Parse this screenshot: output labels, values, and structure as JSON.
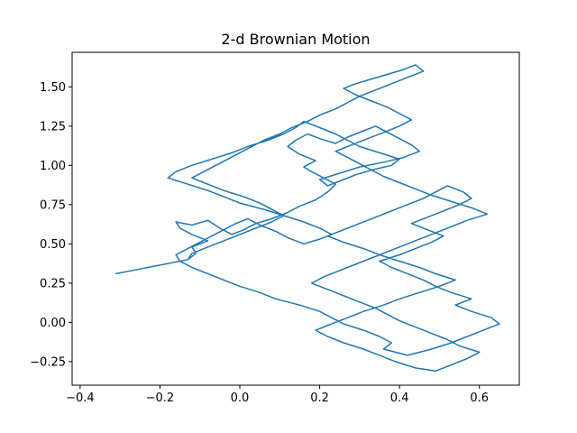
{
  "chart_data": {
    "type": "line",
    "title": "2-d Brownian Motion",
    "xlabel": "",
    "ylabel": "",
    "xlim": [
      -0.42,
      0.7
    ],
    "ylim": [
      -0.4,
      1.72
    ],
    "x_ticks": [
      -0.4,
      -0.2,
      0.0,
      0.2,
      0.4,
      0.6
    ],
    "x_tick_labels": [
      "−0.4",
      "−0.2",
      "0.0",
      "0.2",
      "0.4",
      "0.6"
    ],
    "y_ticks": [
      -0.25,
      0.0,
      0.25,
      0.5,
      0.75,
      1.0,
      1.25,
      1.5
    ],
    "y_tick_labels": [
      "−0.25",
      "0.00",
      "0.25",
      "0.50",
      "0.75",
      "1.00",
      "1.25",
      "1.50"
    ],
    "grid": false,
    "series": [
      {
        "color": "#1f77b4",
        "x": [
          -0.31,
          -0.25,
          -0.19,
          -0.13,
          -0.11,
          -0.12,
          -0.08,
          -0.12,
          -0.15,
          -0.16,
          -0.12,
          -0.08,
          -0.05,
          -0.02,
          0.01,
          0.04,
          0.08,
          0.12,
          0.15,
          0.19,
          0.22,
          0.24,
          0.21,
          0.18,
          0.16,
          0.19,
          0.15,
          0.12,
          0.14,
          0.17,
          0.2,
          0.24,
          0.27,
          0.31,
          0.34,
          0.37,
          0.4,
          0.43,
          0.45,
          0.41,
          0.36,
          0.3,
          0.25,
          0.2,
          0.22,
          0.26,
          0.29,
          0.33,
          0.38,
          0.4,
          0.35,
          0.3,
          0.27,
          0.24,
          0.2,
          0.16,
          0.14,
          0.11,
          0.07,
          0.02,
          -0.02,
          -0.07,
          -0.12,
          -0.16,
          -0.18,
          -0.13,
          -0.08,
          -0.04,
          0.0,
          0.06,
          0.11,
          0.16,
          0.2,
          0.23,
          0.2,
          0.16,
          0.12,
          0.09,
          0.05,
          0.02,
          -0.01,
          -0.04,
          -0.07,
          -0.1,
          -0.13,
          -0.16,
          -0.15,
          -0.12,
          -0.08,
          -0.04,
          0.0,
          0.05,
          0.09,
          0.15,
          0.2,
          0.23,
          0.26,
          0.31,
          0.35,
          0.38,
          0.36,
          0.42,
          0.48,
          0.53,
          0.57,
          0.61,
          0.65,
          0.63,
          0.58,
          0.54,
          0.58,
          0.53,
          0.49,
          0.46,
          0.42,
          0.38,
          0.35,
          0.4,
          0.44,
          0.48,
          0.51,
          0.47,
          0.43,
          0.47,
          0.51,
          0.55,
          0.58,
          0.56,
          0.52,
          0.49,
          0.46,
          0.42,
          0.38,
          0.34,
          0.3,
          0.26,
          0.22,
          0.26,
          0.31,
          0.35,
          0.4,
          0.45,
          0.49,
          0.54,
          0.5,
          0.45,
          0.4,
          0.36,
          0.31,
          0.27,
          0.23,
          0.19,
          0.22,
          0.26,
          0.31,
          0.35,
          0.39,
          0.44,
          0.49,
          0.53,
          0.57,
          0.6,
          0.55,
          0.52,
          0.48,
          0.44,
          0.4,
          0.37,
          0.34,
          0.3,
          0.26,
          0.22,
          0.18,
          0.21,
          0.25,
          0.29,
          0.33,
          0.37,
          0.41,
          0.45,
          0.49,
          0.53,
          0.57,
          0.62,
          0.58,
          0.53,
          0.48,
          0.44,
          0.4,
          0.36,
          0.33,
          0.3,
          0.27,
          0.24,
          0.28,
          0.32,
          0.36,
          0.4,
          0.43,
          0.4,
          0.37,
          0.33,
          0.29,
          0.26,
          0.29,
          0.33,
          0.37,
          0.41,
          0.44,
          0.46,
          0.42,
          0.38,
          0.34,
          0.3,
          0.27,
          0.24,
          0.2,
          0.17,
          0.13,
          0.1,
          0.06,
          0.03,
          0.0,
          -0.03,
          -0.06,
          -0.09,
          -0.12,
          -0.08,
          -0.04,
          0.01,
          0.05,
          0.08,
          0.11,
          0.08,
          0.04,
          0.0,
          -0.04,
          -0.08,
          -0.12,
          -0.13
        ],
        "y": [
          0.31,
          0.34,
          0.37,
          0.4,
          0.44,
          0.48,
          0.52,
          0.56,
          0.6,
          0.64,
          0.62,
          0.65,
          0.6,
          0.56,
          0.59,
          0.63,
          0.66,
          0.7,
          0.74,
          0.78,
          0.83,
          0.88,
          0.92,
          0.96,
          0.99,
          1.03,
          1.07,
          1.12,
          1.16,
          1.2,
          1.17,
          1.14,
          1.18,
          1.22,
          1.25,
          1.21,
          1.17,
          1.13,
          1.09,
          1.05,
          1.02,
          0.99,
          0.95,
          0.91,
          0.87,
          0.91,
          0.94,
          0.97,
          1.0,
          1.04,
          1.08,
          1.12,
          1.16,
          1.2,
          1.24,
          1.28,
          1.24,
          1.2,
          1.16,
          1.12,
          1.08,
          1.04,
          1.0,
          0.96,
          0.92,
          0.88,
          0.84,
          0.8,
          0.76,
          0.72,
          0.68,
          0.64,
          0.6,
          0.56,
          0.53,
          0.5,
          0.54,
          0.58,
          0.62,
          0.66,
          0.63,
          0.59,
          0.55,
          0.51,
          0.47,
          0.43,
          0.39,
          0.35,
          0.31,
          0.27,
          0.23,
          0.19,
          0.15,
          0.11,
          0.07,
          0.03,
          -0.01,
          -0.05,
          -0.09,
          -0.13,
          -0.17,
          -0.21,
          -0.17,
          -0.13,
          -0.09,
          -0.05,
          -0.01,
          0.03,
          0.07,
          0.11,
          0.15,
          0.19,
          0.23,
          0.27,
          0.31,
          0.35,
          0.39,
          0.43,
          0.47,
          0.51,
          0.55,
          0.59,
          0.63,
          0.67,
          0.71,
          0.75,
          0.79,
          0.83,
          0.87,
          0.83,
          0.79,
          0.75,
          0.71,
          0.67,
          0.63,
          0.59,
          0.55,
          0.51,
          0.47,
          0.43,
          0.39,
          0.35,
          0.31,
          0.27,
          0.23,
          0.19,
          0.15,
          0.11,
          0.07,
          0.03,
          -0.01,
          -0.05,
          -0.09,
          -0.13,
          -0.17,
          -0.21,
          -0.25,
          -0.29,
          -0.31,
          -0.27,
          -0.23,
          -0.19,
          -0.15,
          -0.11,
          -0.07,
          -0.03,
          0.01,
          0.05,
          0.09,
          0.13,
          0.17,
          0.21,
          0.25,
          0.29,
          0.33,
          0.37,
          0.41,
          0.45,
          0.49,
          0.53,
          0.57,
          0.61,
          0.65,
          0.69,
          0.73,
          0.77,
          0.81,
          0.85,
          0.89,
          0.93,
          0.97,
          1.01,
          1.05,
          1.09,
          1.13,
          1.17,
          1.21,
          1.25,
          1.29,
          1.33,
          1.37,
          1.41,
          1.45,
          1.49,
          1.52,
          1.55,
          1.58,
          1.61,
          1.64,
          1.6,
          1.56,
          1.52,
          1.48,
          1.44,
          1.4,
          1.36,
          1.32,
          1.28,
          1.24,
          1.2,
          1.16,
          1.12,
          1.08,
          1.04,
          1.0,
          0.96,
          0.92,
          0.88,
          0.84,
          0.8,
          0.76,
          0.72,
          0.68,
          0.64,
          0.6,
          0.56,
          0.52,
          0.48,
          0.44,
          0.4
        ]
      }
    ]
  }
}
